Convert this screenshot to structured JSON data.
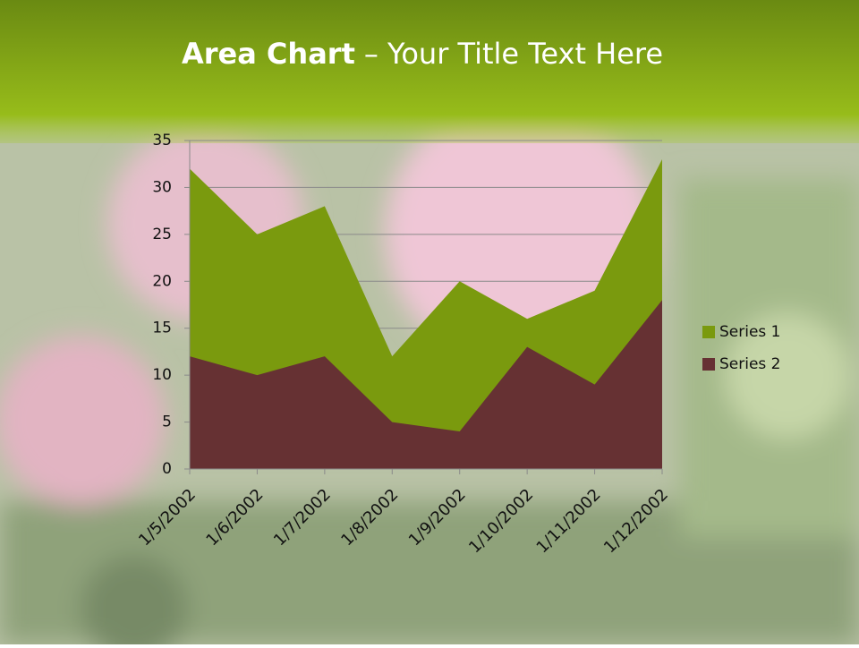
{
  "slide": {
    "title_bold": "Area Chart",
    "title_rest": "– Your Title Text Here"
  },
  "chart_data": {
    "type": "area",
    "categories": [
      "1/5/2002",
      "1/6/2002",
      "1/7/2002",
      "1/8/2002",
      "1/9/2002",
      "1/10/2002",
      "1/11/2002",
      "1/12/2002"
    ],
    "series": [
      {
        "name": "Series 1",
        "color": "#7a9a0e",
        "values": [
          32,
          25,
          28,
          12,
          20,
          16,
          19,
          33
        ]
      },
      {
        "name": "Series 2",
        "color": "#663133",
        "values": [
          12,
          10,
          12,
          5,
          4,
          13,
          9,
          18
        ]
      }
    ],
    "ylim": [
      0,
      35
    ],
    "yticks": [
      0,
      5,
      10,
      15,
      20,
      25,
      30,
      35
    ],
    "grid": true,
    "legend": "right"
  }
}
